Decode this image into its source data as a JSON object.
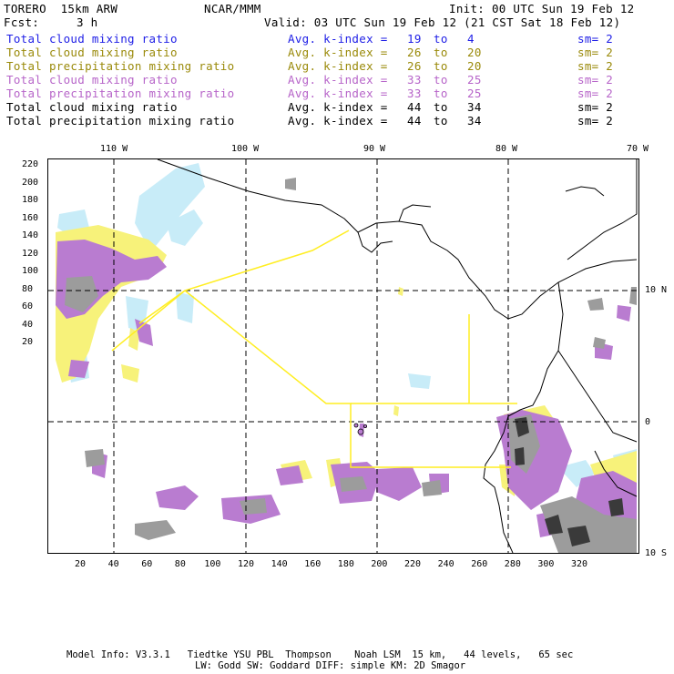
{
  "header": {
    "model": "TORERO  15km ARW",
    "center": "NCAR/MMM",
    "init": "Init: 00 UTC Sun 19 Feb 12",
    "fcst_label": "Fcst:",
    "fcst_value": "3 h",
    "valid": "Valid: 03 UTC Sun 19 Feb 12 (21 CST Sat 18 Feb 12)"
  },
  "legend": [
    {
      "field": "Total cloud mixing ratio",
      "stat": "Avg. k-index =",
      "from": "19",
      "to_word": "to",
      "to": "4",
      "sm": "sm= 2",
      "color": "#1e1ee6"
    },
    {
      "field": "Total cloud mixing ratio",
      "stat": "Avg. k-index =",
      "from": "26",
      "to_word": "to",
      "to": "20",
      "sm": "sm= 2",
      "color": "#9a8a0a"
    },
    {
      "field": "Total precipitation mixing ratio",
      "stat": "Avg. k-index =",
      "from": "26",
      "to_word": "to",
      "to": "20",
      "sm": "sm= 2",
      "color": "#9a8a0a"
    },
    {
      "field": "Total cloud mixing ratio",
      "stat": "Avg. k-index =",
      "from": "33",
      "to_word": "to",
      "to": "25",
      "sm": "sm= 2",
      "color": "#b765c9"
    },
    {
      "field": "Total precipitation mixing ratio",
      "stat": "Avg. k-index =",
      "from": "33",
      "to_word": "to",
      "to": "25",
      "sm": "sm= 2",
      "color": "#b765c9"
    },
    {
      "field": "Total cloud mixing ratio",
      "stat": "Avg. k-index =",
      "from": "44",
      "to_word": "to",
      "to": "34",
      "sm": "sm= 2",
      "color": "#000000"
    },
    {
      "field": "Total precipitation mixing ratio",
      "stat": "Avg. k-index =",
      "from": "44",
      "to_word": "to",
      "to": "34",
      "sm": "sm= 2",
      "color": "#000000"
    }
  ],
  "map": {
    "top_lon_labels": [
      "110 W",
      "100 W",
      "90 W",
      "80 W",
      "70 W"
    ],
    "right_lat_labels": [
      "10 N",
      "0",
      "10 S"
    ],
    "left_ticks": [
      "220",
      "200",
      "180",
      "160",
      "140",
      "120",
      "100",
      "80",
      "60",
      "40",
      "20"
    ],
    "bottom_ticks": [
      "20",
      "40",
      "60",
      "80",
      "100",
      "120",
      "140",
      "160",
      "180",
      "200",
      "220",
      "240",
      "260",
      "280",
      "300",
      "320"
    ],
    "colors": {
      "light_blue": "#c8ecf8",
      "yellow": "#f7f27a",
      "purple": "#b97cd0",
      "gray": "#9c9c9c",
      "dark": "#3a3a3a",
      "outline": "#ffee22"
    }
  },
  "footer": {
    "line1": "Model Info: V3.3.1   Tiedtke YSU PBL  Thompson    Noah LSM  15 km,   44 levels,   65 sec",
    "line2": "LW: Godd SW: Goddard DIFF: simple KM: 2D Smagor"
  }
}
